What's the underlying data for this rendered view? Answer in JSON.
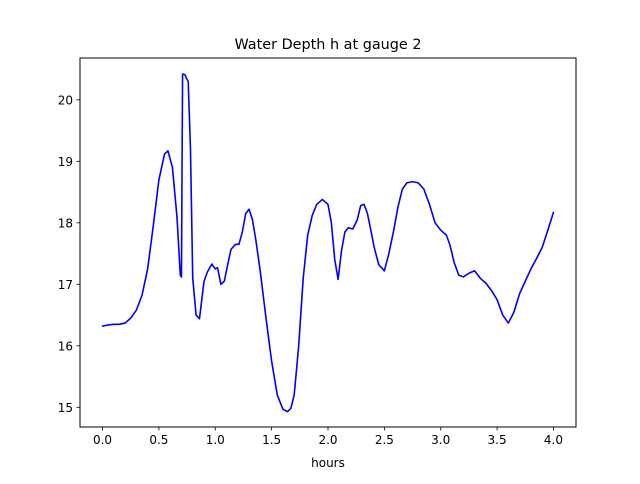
{
  "chart_data": {
    "type": "line",
    "title": "Water Depth h at gauge 2",
    "xlabel": "hours",
    "ylabel": "",
    "xlim": [
      -0.2,
      4.2
    ],
    "ylim": [
      14.68,
      20.68
    ],
    "xticks": [
      0.0,
      0.5,
      1.0,
      1.5,
      2.0,
      2.5,
      3.0,
      3.5,
      4.0
    ],
    "xtick_labels": [
      "0.0",
      "0.5",
      "1.0",
      "1.5",
      "2.0",
      "2.5",
      "3.0",
      "3.5",
      "4.0"
    ],
    "yticks": [
      15,
      16,
      17,
      18,
      19,
      20
    ],
    "ytick_labels": [
      "15",
      "16",
      "17",
      "18",
      "19",
      "20"
    ],
    "grid": false,
    "series": [
      {
        "color": "#0000ff",
        "x": [
          0.0,
          0.05,
          0.1,
          0.15,
          0.2,
          0.25,
          0.3,
          0.35,
          0.4,
          0.45,
          0.5,
          0.55,
          0.58,
          0.62,
          0.66,
          0.69,
          0.7,
          0.71,
          0.73,
          0.75,
          0.76,
          0.78,
          0.8,
          0.83,
          0.86,
          0.9,
          0.93,
          0.97,
          1.0,
          1.02,
          1.05,
          1.08,
          1.11,
          1.14,
          1.18,
          1.21,
          1.24,
          1.27,
          1.3,
          1.33,
          1.36,
          1.4,
          1.45,
          1.5,
          1.55,
          1.6,
          1.64,
          1.67,
          1.7,
          1.74,
          1.78,
          1.82,
          1.86,
          1.9,
          1.95,
          2.0,
          2.03,
          2.06,
          2.09,
          2.12,
          2.15,
          2.18,
          2.22,
          2.26,
          2.29,
          2.32,
          2.35,
          2.38,
          2.41,
          2.45,
          2.5,
          2.54,
          2.58,
          2.62,
          2.66,
          2.7,
          2.75,
          2.8,
          2.85,
          2.9,
          2.95,
          3.0,
          3.05,
          3.08,
          3.12,
          3.16,
          3.2,
          3.25,
          3.3,
          3.35,
          3.4,
          3.45,
          3.5,
          3.55,
          3.6,
          3.65,
          3.7,
          3.75,
          3.8,
          3.85,
          3.9,
          3.95,
          4.0
        ],
        "y": [
          16.32,
          16.34,
          16.35,
          16.35,
          16.37,
          16.45,
          16.58,
          16.82,
          17.25,
          17.95,
          18.7,
          19.12,
          19.17,
          18.9,
          18.1,
          17.15,
          17.12,
          20.42,
          20.41,
          20.33,
          20.3,
          19.2,
          17.1,
          16.5,
          16.44,
          17.05,
          17.2,
          17.33,
          17.25,
          17.27,
          17.0,
          17.05,
          17.32,
          17.57,
          17.65,
          17.65,
          17.85,
          18.15,
          18.22,
          18.05,
          17.72,
          17.2,
          16.45,
          15.75,
          15.2,
          14.97,
          14.93,
          14.98,
          15.2,
          16.0,
          17.1,
          17.8,
          18.12,
          18.3,
          18.38,
          18.3,
          18.0,
          17.4,
          17.08,
          17.55,
          17.85,
          17.92,
          17.9,
          18.05,
          18.28,
          18.3,
          18.15,
          17.88,
          17.6,
          17.32,
          17.22,
          17.5,
          17.85,
          18.25,
          18.55,
          18.65,
          18.67,
          18.65,
          18.55,
          18.3,
          18.0,
          17.88,
          17.8,
          17.65,
          17.35,
          17.15,
          17.12,
          17.18,
          17.22,
          17.1,
          17.02,
          16.9,
          16.75,
          16.5,
          16.37,
          16.55,
          16.85,
          17.05,
          17.25,
          17.42,
          17.6,
          17.88,
          18.17
        ]
      }
    ]
  }
}
